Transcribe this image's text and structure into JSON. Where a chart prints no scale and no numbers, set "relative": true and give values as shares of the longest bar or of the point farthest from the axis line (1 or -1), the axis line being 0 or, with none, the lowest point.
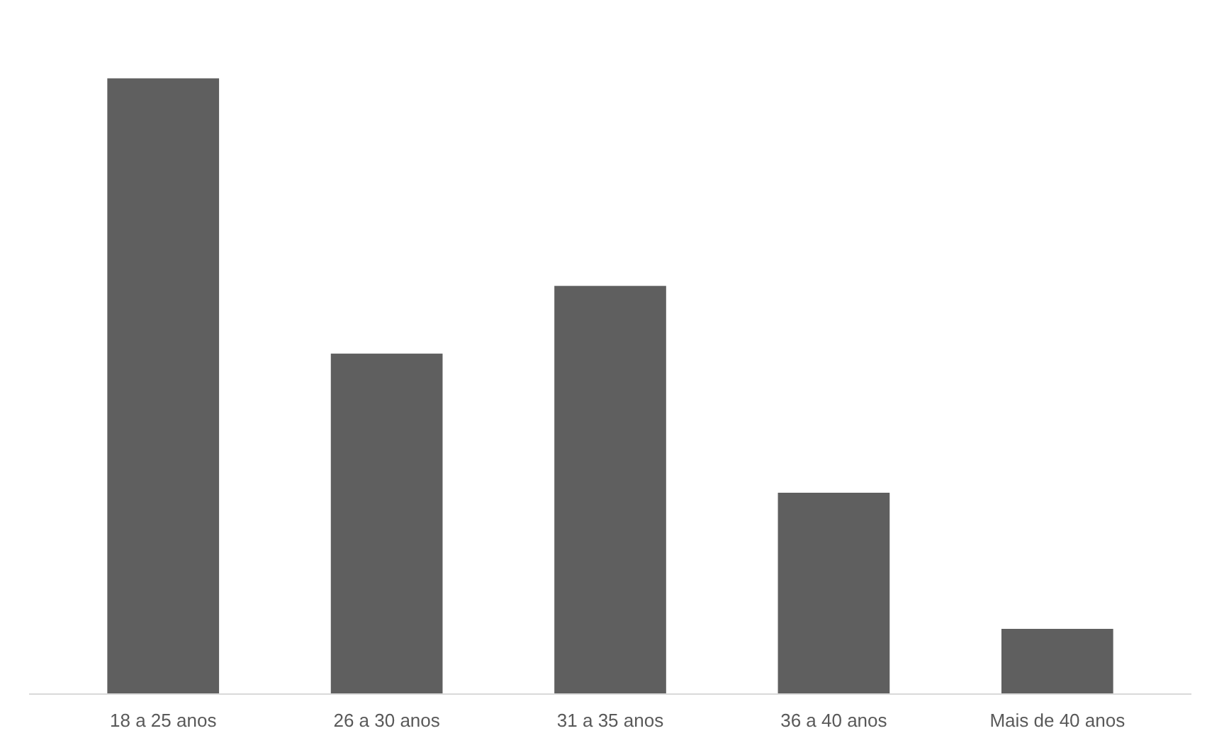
{
  "chart_data": {
    "type": "bar",
    "relative": true,
    "categories": [
      "18 a 25 anos",
      "26 a 30 anos",
      "31 a 35 anos",
      "36 a 40 anos",
      "Mais de 40 anos"
    ],
    "values": [
      1,
      0.553,
      0.663,
      0.327,
      0.106
    ],
    "color": "#5f5f5f"
  }
}
